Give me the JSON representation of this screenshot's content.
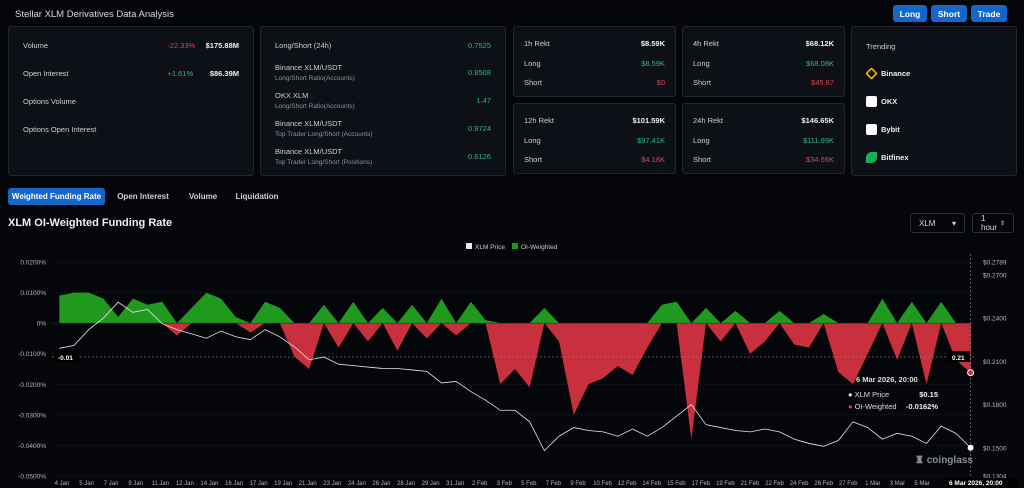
{
  "header": {
    "title": "Stellar XLM Derivatives Data Analysis",
    "buttons": [
      "Long",
      "Short",
      "Trade"
    ]
  },
  "overview": {
    "items": [
      {
        "label": "Volume",
        "change": "-22.33%",
        "value": "$175.88M",
        "trend": "down"
      },
      {
        "label": "Open Interest",
        "change": "+1.61%",
        "value": "$86.39M",
        "trend": "up"
      },
      {
        "label": "Options Volume",
        "change": "",
        "value": ""
      },
      {
        "label": "Options Open Interest",
        "change": "",
        "value": ""
      }
    ]
  },
  "ratios": {
    "items": [
      {
        "label": "Long/Short (24h)",
        "sub": "",
        "value": "0.7525"
      },
      {
        "label": "Binance XLM/USDT",
        "sub": "Long/Short Ratio(Accounts)",
        "value": "0.8508"
      },
      {
        "label": "OKX XLM",
        "sub": "Long/Short Ratio(Accounts)",
        "value": "1.47"
      },
      {
        "label": "Binance XLM/USDT",
        "sub": "Top Trader Long/Short (Accounts)",
        "value": "0.9724"
      },
      {
        "label": "Binance XLM/USDT",
        "sub": "Top Trader Long/Short (Positions)",
        "value": "0.6126"
      }
    ]
  },
  "rekt": [
    {
      "title": "1h Rekt",
      "total": "$8.59K",
      "long_label": "Long",
      "long": "$8.59K",
      "short_label": "Short",
      "short": "$0"
    },
    {
      "title": "4h Rekt",
      "total": "$68.12K",
      "long_label": "Long",
      "long": "$68.08K",
      "short_label": "Short",
      "short": "$45.87"
    },
    {
      "title": "12h Rekt",
      "total": "$101.59K",
      "long_label": "Long",
      "long": "$97.41K",
      "short_label": "Short",
      "short": "$4.18K"
    },
    {
      "title": "24h Rekt",
      "total": "$146.65K",
      "long_label": "Long",
      "long": "$111.99K",
      "short_label": "Short",
      "short": "$34.66K"
    }
  ],
  "trending": {
    "title": "Trending",
    "exchanges": [
      {
        "name": "Binance",
        "icon": "binance-icon",
        "color": "#f0b90b"
      },
      {
        "name": "OKX",
        "icon": "okx-icon",
        "color": "#ffffff"
      },
      {
        "name": "Bybit",
        "icon": "bybit-icon",
        "color": "#ffffff"
      },
      {
        "name": "Bitfinex",
        "icon": "bitfinex-icon",
        "color": "#16b157"
      }
    ]
  },
  "tabs": [
    "Weighted Funding Rate",
    "Open Interest",
    "Volume",
    "Liquidation"
  ],
  "chart_title": "XLM OI-Weighted Funding Rate",
  "controls": {
    "symbol": "XLM",
    "interval": "1 hour"
  },
  "tooltip": {
    "date": "6 Mar 2026, 20:00",
    "price_label": "XLM Price",
    "price": "$0.15",
    "rate_label": "OI-Weighted",
    "rate": "-0.0162%"
  },
  "crosshair": {
    "left_label": "-0.01",
    "right_label": "0.21",
    "x_label": "6 Mar 2026, 20:00"
  },
  "watermark": "coinglass",
  "chart_data": {
    "type": "line+area",
    "legend": [
      "XLM Price",
      "OI-Weighted"
    ],
    "legend_placement": "top-center",
    "colors": {
      "price": "#e8e8e8",
      "positive": "#1f9a1f",
      "negative": "#c8303e"
    },
    "y_left": {
      "unit": "%",
      "range": [
        -0.05,
        0.02
      ],
      "ticks": [
        "0.0200%",
        "0.0100%",
        "0%",
        "-0.0100%",
        "-0.0200%",
        "-0.0300%",
        "-0.0400%",
        "-0.0500%"
      ]
    },
    "y_right": {
      "range": [
        0.1304,
        0.2789
      ],
      "ticks": [
        "$0.2789",
        "$0.2700",
        "$0.2400",
        "$0.2100",
        "$0.1800",
        "$0.1500",
        "$0.1304"
      ]
    },
    "x_ticks": [
      "4 Jan",
      "5 Jan",
      "7 Jan",
      "9 Jan",
      "11 Jan",
      "12 Jan",
      "14 Jan",
      "16 Jan",
      "17 Jan",
      "19 Jan",
      "21 Jan",
      "23 Jan",
      "24 Jan",
      "26 Jan",
      "28 Jan",
      "29 Jan",
      "31 Jan",
      "2 Feb",
      "3 Feb",
      "5 Feb",
      "7 Feb",
      "9 Feb",
      "10 Feb",
      "12 Feb",
      "14 Feb",
      "15 Feb",
      "17 Feb",
      "19 Feb",
      "21 Feb",
      "22 Feb",
      "24 Feb",
      "26 Feb",
      "27 Feb",
      "1 Mar",
      "3 Mar",
      "5 Mar"
    ],
    "x": [
      "3 Jan",
      "4 Jan",
      "5 Jan",
      "6 Jan",
      "7 Jan",
      "8 Jan",
      "9 Jan",
      "10 Jan",
      "11 Jan",
      "12 Jan",
      "13 Jan",
      "14 Jan",
      "15 Jan",
      "16 Jan",
      "17 Jan",
      "18 Jan",
      "19 Jan",
      "20 Jan",
      "21 Jan",
      "22 Jan",
      "23 Jan",
      "24 Jan",
      "25 Jan",
      "26 Jan",
      "27 Jan",
      "28 Jan",
      "29 Jan",
      "30 Jan",
      "31 Jan",
      "1 Feb",
      "2 Feb",
      "3 Feb",
      "4 Feb",
      "5 Feb",
      "6 Feb",
      "7 Feb",
      "8 Feb",
      "9 Feb",
      "10 Feb",
      "11 Feb",
      "12 Feb",
      "13 Feb",
      "14 Feb",
      "15 Feb",
      "16 Feb",
      "17 Feb",
      "18 Feb",
      "19 Feb",
      "20 Feb",
      "21 Feb",
      "22 Feb",
      "23 Feb",
      "24 Feb",
      "25 Feb",
      "26 Feb",
      "27 Feb",
      "28 Feb",
      "1 Mar",
      "2 Mar",
      "3 Mar",
      "4 Mar",
      "5 Mar",
      "6 Mar"
    ],
    "funding_rate": [
      0.009,
      0.01,
      0.01,
      0.008,
      0.002,
      0.008,
      0.006,
      0.007,
      -0.004,
      0.005,
      0.01,
      0.008,
      0.002,
      -0.003,
      0.007,
      0.005,
      -0.011,
      -0.015,
      0.006,
      -0.008,
      0.007,
      -0.006,
      0.005,
      -0.009,
      0.006,
      -0.005,
      0.008,
      -0.004,
      0.007,
      0.001,
      -0.02,
      -0.015,
      -0.021,
      0.005,
      -0.006,
      -0.03,
      -0.02,
      -0.018,
      -0.014,
      -0.017,
      -0.008,
      0.006,
      0.007,
      -0.038,
      0.005,
      -0.006,
      0.004,
      -0.01,
      -0.006,
      0.004,
      -0.007,
      -0.008,
      0.003,
      -0.016,
      -0.02,
      -0.01,
      0.008,
      -0.012,
      0.007,
      -0.02,
      0.007,
      -0.012,
      -0.0162
    ],
    "price": [
      0.219,
      0.221,
      0.232,
      0.24,
      0.251,
      0.244,
      0.246,
      0.236,
      0.232,
      0.229,
      0.226,
      0.231,
      0.227,
      0.225,
      0.232,
      0.227,
      0.22,
      0.211,
      0.213,
      0.208,
      0.207,
      0.206,
      0.205,
      0.205,
      0.204,
      0.203,
      0.195,
      0.196,
      0.189,
      0.183,
      0.176,
      0.176,
      0.168,
      0.148,
      0.158,
      0.164,
      0.162,
      0.161,
      0.158,
      0.163,
      0.158,
      0.164,
      0.172,
      0.18,
      0.166,
      0.164,
      0.162,
      0.161,
      0.163,
      0.161,
      0.156,
      0.153,
      0.151,
      0.155,
      0.168,
      0.164,
      0.156,
      0.16,
      0.158,
      0.153,
      0.165,
      0.16,
      0.15
    ]
  }
}
